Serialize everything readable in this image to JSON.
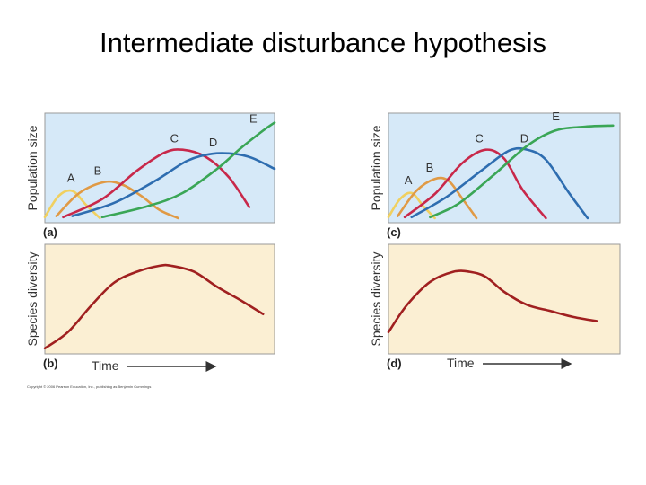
{
  "slide": {
    "title": "Intermediate disturbance hypothesis",
    "copyright": "Copyright © 2006 Pearson Education, Inc., publishing as Benjamin Cummings"
  },
  "colors": {
    "top_bg": "#d6e9f8",
    "bottom_bg": "#fbefd3",
    "panel_border": "#9a9a9a",
    "A": "#f0d060",
    "B": "#e09a45",
    "C": "#c8284a",
    "D": "#2e6db0",
    "E": "#3aa656",
    "diversity": "#a02020",
    "arrow": "#333333"
  },
  "chart_data": [
    {
      "type": "line",
      "panel_label": "(a)",
      "ylabel": "Population size",
      "xlabel": "",
      "xlim": [
        0,
        10
      ],
      "ylim": [
        0,
        10
      ],
      "series": [
        {
          "name": "A",
          "x": [
            0.0,
            0.6,
            1.2,
            1.8,
            2.4
          ],
          "values": [
            0.2,
            2.3,
            2.8,
            1.4,
            0.1
          ]
        },
        {
          "name": "B",
          "x": [
            0.5,
            1.5,
            2.6,
            3.4,
            4.2,
            5.0,
            5.8
          ],
          "values": [
            0.3,
            2.6,
            3.7,
            3.4,
            2.3,
            0.9,
            0.1
          ]
        },
        {
          "name": "C",
          "x": [
            0.8,
            2.5,
            4.0,
            5.2,
            6.0,
            7.0,
            8.0,
            8.9
          ],
          "values": [
            0.2,
            2.0,
            4.8,
            6.6,
            6.9,
            6.2,
            4.2,
            1.2
          ]
        },
        {
          "name": "D",
          "x": [
            1.2,
            3.0,
            4.8,
            6.2,
            7.3,
            8.2,
            9.0,
            10.0
          ],
          "values": [
            0.3,
            1.6,
            3.8,
            5.8,
            6.5,
            6.5,
            6.1,
            5.0
          ]
        },
        {
          "name": "E",
          "x": [
            2.5,
            4.5,
            6.0,
            7.5,
            8.5,
            9.5,
            10.0
          ],
          "values": [
            0.2,
            1.3,
            2.6,
            5.0,
            7.0,
            8.8,
            9.6
          ]
        }
      ]
    },
    {
      "type": "line",
      "panel_label": "(b)",
      "ylabel": "Species diversity",
      "xlabel": "Time",
      "xlim": [
        0,
        10
      ],
      "ylim": [
        0,
        10
      ],
      "series": [
        {
          "name": "",
          "x": [
            0.0,
            1.0,
            2.0,
            3.0,
            4.0,
            5.0,
            5.5,
            6.5,
            7.5,
            8.5,
            9.5
          ],
          "values": [
            0.2,
            1.8,
            4.4,
            6.7,
            7.8,
            8.4,
            8.4,
            7.8,
            6.3,
            5.0,
            3.6
          ]
        }
      ]
    },
    {
      "type": "line",
      "panel_label": "(c)",
      "ylabel": "Population size",
      "xlabel": "",
      "xlim": [
        0,
        10
      ],
      "ylim": [
        0,
        10
      ],
      "series": [
        {
          "name": "A",
          "x": [
            0.0,
            0.5,
            1.0,
            1.5,
            2.0
          ],
          "values": [
            0.2,
            2.0,
            2.6,
            1.3,
            0.1
          ]
        },
        {
          "name": "B",
          "x": [
            0.4,
            1.2,
            2.0,
            2.6,
            3.2,
            3.8
          ],
          "values": [
            0.3,
            2.8,
            4.0,
            3.8,
            2.0,
            0.1
          ]
        },
        {
          "name": "C",
          "x": [
            0.7,
            2.0,
            3.2,
            4.2,
            5.0,
            5.8,
            6.8
          ],
          "values": [
            0.2,
            2.5,
            5.6,
            6.9,
            6.0,
            2.9,
            0.1
          ]
        },
        {
          "name": "D",
          "x": [
            1.0,
            2.5,
            4.0,
            5.2,
            6.0,
            6.8,
            7.8,
            8.6
          ],
          "values": [
            0.2,
            2.2,
            4.8,
            6.8,
            6.9,
            5.9,
            2.6,
            0.1
          ]
        },
        {
          "name": "E",
          "x": [
            1.8,
            3.0,
            4.5,
            6.0,
            7.2,
            8.5,
            9.7
          ],
          "values": [
            0.2,
            1.5,
            4.3,
            7.3,
            8.8,
            9.2,
            9.3
          ]
        }
      ]
    },
    {
      "type": "line",
      "panel_label": "(d)",
      "ylabel": "Species diversity",
      "xlabel": "Time",
      "xlim": [
        0,
        10
      ],
      "ylim": [
        0,
        10
      ],
      "series": [
        {
          "name": "",
          "x": [
            0.0,
            0.8,
            1.8,
            2.8,
            3.5,
            4.2,
            5.0,
            6.0,
            7.0,
            8.0,
            9.0
          ],
          "values": [
            1.8,
            4.5,
            6.8,
            7.8,
            7.8,
            7.3,
            5.8,
            4.5,
            3.9,
            3.3,
            2.9
          ]
        }
      ]
    }
  ]
}
